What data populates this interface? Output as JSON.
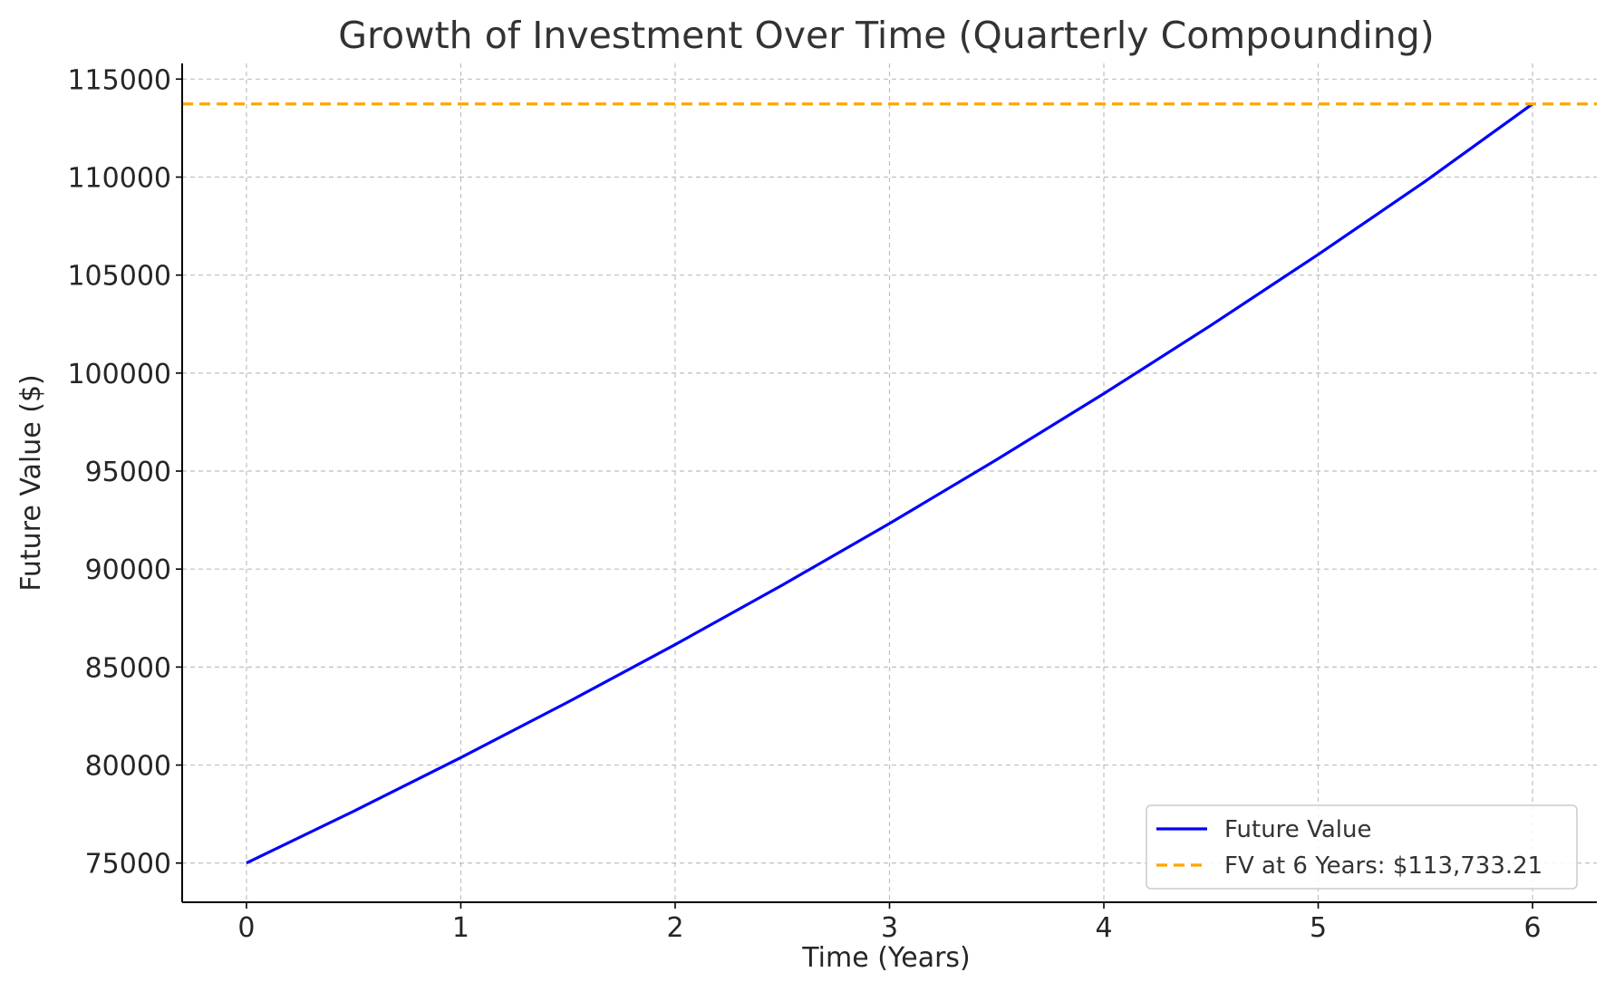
{
  "chart_data": {
    "type": "line",
    "title": "Growth of Investment Over Time (Quarterly Compounding)",
    "xlabel": "Time (Years)",
    "ylabel": "Future Value ($)",
    "xlim": [
      -0.3,
      6.3
    ],
    "ylim": [
      73000,
      115800
    ],
    "x_ticks": [
      0,
      1,
      2,
      3,
      4,
      5,
      6
    ],
    "x_tick_labels": [
      "0",
      "1",
      "2",
      "3",
      "4",
      "5",
      "6"
    ],
    "y_ticks": [
      75000,
      80000,
      85000,
      90000,
      95000,
      100000,
      105000,
      110000,
      115000
    ],
    "y_tick_labels": [
      "75000",
      "80000",
      "85000",
      "90000",
      "95000",
      "100000",
      "105000",
      "110000",
      "115000"
    ],
    "grid": true,
    "legend_position": "bottom-right",
    "series": [
      {
        "name": "Future Value",
        "style": "solid",
        "color": "#0000ff",
        "x": [
          0,
          0.5,
          1,
          1.5,
          2,
          2.5,
          3,
          3.5,
          4,
          4.5,
          5,
          5.5,
          6
        ],
        "y": [
          75000,
          77644,
          80381,
          83214,
          86147,
          89184,
          92327,
          95582,
          98951,
          102439,
          106050,
          109788,
          113733.21
        ]
      },
      {
        "name": "FV at 6 Years: $113,733.21",
        "style": "dashed",
        "color": "#ffa500",
        "y_constant": 113733.21
      }
    ]
  }
}
